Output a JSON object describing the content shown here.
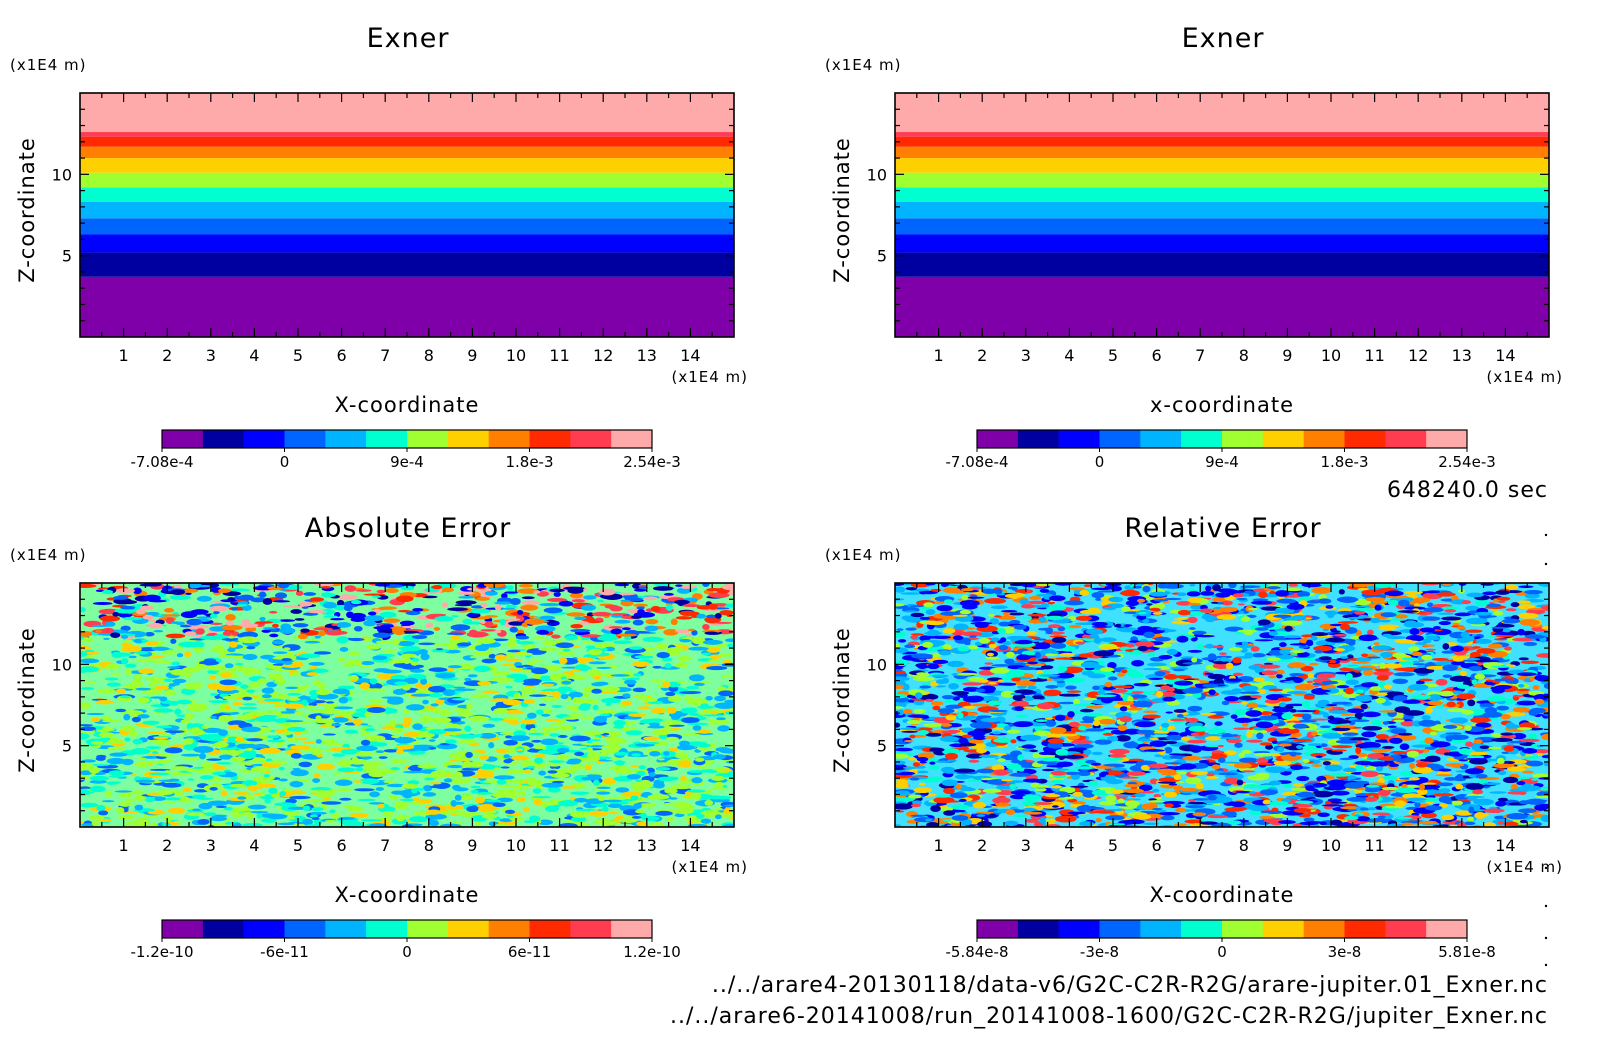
{
  "chart_data": [
    {
      "type": "heatmap",
      "pattern": "bands",
      "title": "Exner",
      "xlabel": "X-coordinate",
      "ylabel": "Z-coordinate",
      "x_unit": "(x1E4 m)",
      "y_unit": "(x1E4 m)",
      "xlim": [
        0,
        15
      ],
      "ylim": [
        0,
        15
      ],
      "xticks": [
        "1",
        "2",
        "3",
        "4",
        "5",
        "6",
        "7",
        "8",
        "9",
        "10",
        "11",
        "12",
        "13",
        "14"
      ],
      "yticks": [
        "5",
        "10"
      ],
      "band_boundaries_z": [
        3.7,
        5.2,
        6.3,
        7.3,
        8.3,
        9.2,
        10.1,
        11.0,
        11.7,
        12.3,
        12.6,
        15
      ],
      "colorbar": {
        "colors": [
          "#7f00a8",
          "#0000a0",
          "#0000ff",
          "#0064ff",
          "#00b4ff",
          "#00ffd0",
          "#a0ff30",
          "#ffd000",
          "#ff8000",
          "#ff2a00",
          "#ff3c50",
          "#ffaaaa"
        ],
        "tick_labels": [
          "-7.08e-4",
          "0",
          "9e-4",
          "1.8e-3",
          "2.54e-3"
        ]
      }
    },
    {
      "type": "heatmap",
      "pattern": "bands",
      "title": "Exner",
      "xlabel": "x-coordinate",
      "ylabel": "Z-coordinate",
      "x_unit": "(x1E4 m)",
      "y_unit": "(x1E4 m)",
      "xlim": [
        0,
        15
      ],
      "ylim": [
        0,
        15
      ],
      "xticks": [
        "1",
        "2",
        "3",
        "4",
        "5",
        "6",
        "7",
        "8",
        "9",
        "10",
        "11",
        "12",
        "13",
        "14"
      ],
      "yticks": [
        "5",
        "10"
      ],
      "band_boundaries_z": [
        3.7,
        5.2,
        6.3,
        7.3,
        8.3,
        9.2,
        10.1,
        11.0,
        11.7,
        12.3,
        12.6,
        15
      ],
      "colorbar": {
        "colors": [
          "#7f00a8",
          "#0000a0",
          "#0000ff",
          "#0064ff",
          "#00b4ff",
          "#00ffd0",
          "#a0ff30",
          "#ffd000",
          "#ff8000",
          "#ff2a00",
          "#ff3c50",
          "#ffaaaa"
        ],
        "tick_labels": [
          "-7.08e-4",
          "0",
          "9e-4",
          "1.8e-3",
          "2.54e-3"
        ]
      }
    },
    {
      "type": "heatmap",
      "pattern": "noise-abs",
      "title": "Absolute Error",
      "xlabel": "X-coordinate",
      "ylabel": "Z-coordinate",
      "x_unit": "(x1E4 m)",
      "y_unit": "(x1E4 m)",
      "xlim": [
        0,
        15
      ],
      "ylim": [
        0,
        15
      ],
      "xticks": [
        "1",
        "2",
        "3",
        "4",
        "5",
        "6",
        "7",
        "8",
        "9",
        "10",
        "11",
        "12",
        "13",
        "14"
      ],
      "yticks": [
        "5",
        "10"
      ],
      "colorbar": {
        "colors": [
          "#7f00a8",
          "#0000a0",
          "#0000ff",
          "#0064ff",
          "#00b4ff",
          "#00ffd0",
          "#a0ff30",
          "#ffd000",
          "#ff8000",
          "#ff2a00",
          "#ff3c50",
          "#ffaaaa"
        ],
        "tick_labels": [
          "-1.2e-10",
          "-6e-11",
          "0",
          "6e-11",
          "1.2e-10"
        ]
      }
    },
    {
      "type": "heatmap",
      "pattern": "noise-rel",
      "title": "Relative Error",
      "xlabel": "X-coordinate",
      "ylabel": "Z-coordinate",
      "x_unit": "(x1E4 m)",
      "y_unit": "(x1E4 m)",
      "xlim": [
        0,
        15
      ],
      "ylim": [
        0,
        15
      ],
      "xticks": [
        "1",
        "2",
        "3",
        "4",
        "5",
        "6",
        "7",
        "8",
        "9",
        "10",
        "11",
        "12",
        "13",
        "14"
      ],
      "yticks": [
        "5",
        "10"
      ],
      "colorbar": {
        "colors": [
          "#7f00a8",
          "#0000a0",
          "#0000ff",
          "#0064ff",
          "#00b4ff",
          "#00ffd0",
          "#a0ff30",
          "#ffd000",
          "#ff8000",
          "#ff2a00",
          "#ff3c50",
          "#ffaaaa"
        ],
        "tick_labels": [
          "-5.84e-8",
          "-3e-8",
          "0",
          "3e-8",
          "5.81e-8"
        ]
      }
    }
  ],
  "time_label": "648240.0 sec",
  "file_paths": [
    "../../arare4-20130118/data-v6/G2C-C2R-R2G/arare-jupiter.01_Exner.nc",
    "../../arare6-20141008/run_20141008-1600/G2C-C2R-R2G/jupiter_Exner.nc"
  ]
}
